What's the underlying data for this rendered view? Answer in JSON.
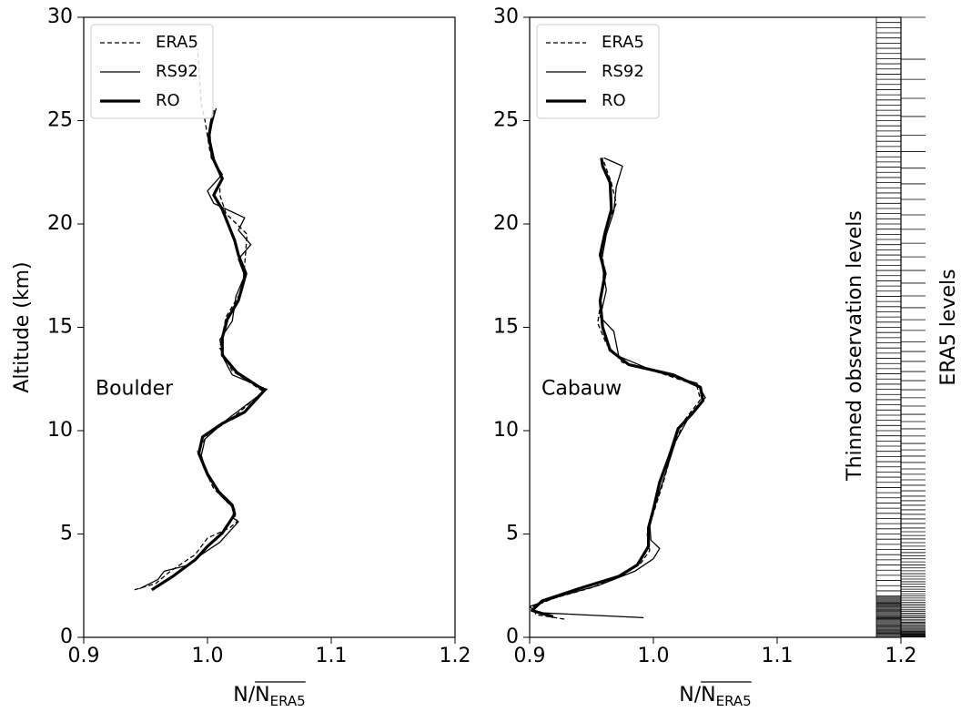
{
  "chart_data": [
    {
      "type": "line",
      "annotation": "Boulder",
      "ylabel": "Altitude (km)",
      "xlabel": {
        "prefix": "N/",
        "overlined": "N",
        "subscript": "ERA5"
      },
      "xlim": [
        0.9,
        1.2
      ],
      "xticks": [
        0.9,
        {
          "value": 1.0,
          "label": "1.0"
        },
        1.1,
        1.2
      ],
      "ylim": [
        0,
        30
      ],
      "yticks": [
        0,
        5,
        10,
        15,
        20,
        25,
        30
      ],
      "legend": "upper left",
      "series": [
        {
          "name": "ERA5",
          "color": "#000000",
          "dash": "dashed",
          "values": [
            0.941,
            0.958,
            0.97,
            0.99,
            1.0,
            1.018,
            1.024,
            1.02,
            1.005,
            0.997,
            0.992,
            1.0,
            1.02,
            1.045,
            1.02,
            1.01,
            1.015,
            1.028,
            1.03,
            1.032,
            1.015,
            1.01,
            1.01,
            1.002,
            0.998,
            0.995,
            0.992
          ],
          "altitude": [
            2.3,
            2.6,
            3.2,
            4.0,
            4.8,
            5.3,
            5.6,
            6.3,
            7.2,
            8.2,
            9.0,
            9.8,
            10.6,
            11.9,
            12.9,
            14.0,
            15.5,
            16.8,
            18.0,
            19.5,
            20.5,
            21.4,
            22.5,
            23.5,
            25.0,
            25.8,
            28.5
          ]
        },
        {
          "name": "RS92",
          "color": "#000000",
          "dash": "solid",
          "values": [
            0.945,
            0.96,
            0.965,
            0.985,
            0.995,
            1.01,
            1.025,
            1.02,
            1.022,
            1.01,
            1.0,
            0.995,
            0.998,
            1.015,
            1.048,
            1.02,
            1.013,
            1.01,
            1.02,
            1.023,
            1.03,
            1.025,
            1.035,
            1.025,
            1.03,
            1.005,
            1.0,
            1.012,
            1.003,
            1.002,
            1.007
          ],
          "altitude": [
            2.35,
            2.8,
            3.2,
            3.5,
            4.0,
            4.6,
            5.6,
            5.8,
            6.2,
            6.9,
            7.8,
            8.8,
            9.6,
            10.5,
            12.0,
            12.7,
            13.5,
            14.4,
            15.3,
            16.5,
            17.5,
            18.3,
            19.0,
            19.7,
            20.3,
            21.0,
            21.6,
            22.4,
            23.2,
            24.5,
            25.6
          ]
        },
        {
          "name": "RO",
          "color": "#000000",
          "dash": "thick",
          "values": [
            0.955,
            0.972,
            0.99,
            1.0,
            1.012,
            1.022,
            1.02,
            1.009,
            1.0,
            0.993,
            0.996,
            1.012,
            1.03,
            1.046,
            1.024,
            1.012,
            1.012,
            1.016,
            1.025,
            1.031,
            1.025,
            1.022,
            1.012,
            1.005,
            1.012,
            1.005,
            1.001,
            1.003,
            1.005
          ],
          "altitude": [
            2.3,
            2.95,
            3.75,
            4.4,
            5.05,
            5.95,
            6.4,
            7.05,
            7.9,
            8.9,
            9.7,
            10.35,
            10.9,
            11.95,
            12.8,
            13.65,
            14.5,
            15.4,
            16.3,
            17.6,
            18.5,
            19.2,
            20.7,
            21.4,
            22.2,
            23.1,
            24.2,
            24.9,
            25.5
          ]
        }
      ]
    },
    {
      "type": "line",
      "annotation": "Cabauw",
      "xlabel": {
        "prefix": "N/",
        "overlined": "N",
        "subscript": "ERA5"
      },
      "xlim": [
        0.9,
        1.2
      ],
      "xticks": [
        0.9,
        {
          "value": 1.0,
          "label": "1.0"
        },
        1.1,
        1.2
      ],
      "ylim": [
        0,
        30
      ],
      "yticks": [
        0,
        5,
        10,
        15,
        20,
        25,
        30
      ],
      "legend": "upper left",
      "series": [
        {
          "name": "ERA5",
          "color": "#000000",
          "dash": "dashed",
          "values": [
            0.928,
            0.905,
            0.903,
            0.92,
            0.95,
            0.975,
            0.99,
            0.997,
            0.995,
            1.0,
            1.008,
            1.015,
            1.025,
            1.038,
            1.035,
            1.0,
            0.975,
            0.962,
            0.955,
            0.958,
            0.96,
            0.958,
            0.963,
            0.97,
            0.966,
            0.96
          ],
          "altitude": [
            0.88,
            1.1,
            1.5,
            1.9,
            2.4,
            3.0,
            3.6,
            4.2,
            5.0,
            6.0,
            7.5,
            9.0,
            10.5,
            11.5,
            12.2,
            12.9,
            13.3,
            14.2,
            15.2,
            16.5,
            17.8,
            19.0,
            20.0,
            21.0,
            22.0,
            23.0
          ]
        },
        {
          "name": "RS92",
          "color": "#000000",
          "dash": "solid",
          "values": [
            0.992,
            0.905,
            0.9,
            0.925,
            0.955,
            0.985,
            1.0,
            1.005,
            0.998,
            0.997,
            1.002,
            1.01,
            1.018,
            1.03,
            1.042,
            1.035,
            1.0,
            0.972,
            0.968,
            0.957,
            0.962,
            0.958,
            0.962,
            0.968,
            0.97,
            0.975,
            0.96
          ],
          "altitude": [
            0.95,
            1.2,
            1.5,
            2.0,
            2.5,
            3.2,
            3.8,
            4.3,
            4.7,
            5.5,
            6.5,
            8.0,
            9.5,
            10.8,
            11.6,
            12.3,
            12.9,
            13.6,
            14.8,
            15.5,
            16.8,
            18.2,
            19.5,
            20.6,
            21.8,
            22.8,
            23.2
          ]
        },
        {
          "name": "RO",
          "color": "#000000",
          "dash": "thick",
          "values": [
            0.919,
            0.902,
            0.91,
            0.943,
            0.972,
            0.987,
            0.996,
            0.996,
            1.0,
            1.005,
            1.013,
            1.02,
            1.031,
            1.04,
            1.038,
            1.016,
            0.98,
            0.965,
            0.959,
            0.957,
            0.961,
            0.957,
            0.961,
            0.966,
            0.965,
            0.959,
            0.958
          ],
          "altitude": [
            1.0,
            1.3,
            1.76,
            2.42,
            2.95,
            3.5,
            4.4,
            5.3,
            6.2,
            7.5,
            8.8,
            10.1,
            10.8,
            11.45,
            12.1,
            12.7,
            13.2,
            13.9,
            15.0,
            16.3,
            17.6,
            18.5,
            19.6,
            20.7,
            22.0,
            22.8,
            23.2
          ]
        }
      ],
      "obs_levels_label": "Thinned observation levels",
      "obs_levels": [
        0.05,
        0.1,
        0.15,
        0.2,
        0.25,
        0.3,
        0.35,
        0.4,
        0.45,
        0.5,
        0.55,
        0.6,
        0.65,
        0.7,
        0.75,
        0.8,
        0.85,
        0.9,
        0.95,
        1,
        1.05,
        1.1,
        1.15,
        1.2,
        1.25,
        1.3,
        1.35,
        1.4,
        1.45,
        1.5,
        1.55,
        1.6,
        1.65,
        1.7,
        1.75,
        1.8,
        1.85,
        1.9,
        1.95,
        2,
        2.25,
        2.5,
        2.75,
        3,
        3.25,
        3.5,
        3.75,
        4,
        4.25,
        4.5,
        4.75,
        5,
        5.25,
        5.5,
        5.75,
        6,
        6.25,
        6.5,
        6.75,
        7,
        7.25,
        7.5,
        7.75,
        8,
        8.25,
        8.5,
        8.75,
        9,
        9.25,
        9.5,
        9.75,
        10,
        10.25,
        10.5,
        10.75,
        11,
        11.25,
        11.5,
        11.75,
        12,
        12.25,
        12.5,
        12.75,
        13,
        13.25,
        13.5,
        13.75,
        14,
        14.25,
        14.5,
        14.75,
        15,
        15.25,
        15.5,
        15.75,
        16,
        16.25,
        16.5,
        16.75,
        17,
        17.25,
        17.5,
        17.75,
        18,
        18.25,
        18.5,
        18.75,
        19,
        19.25,
        19.5,
        19.75,
        20,
        20.25,
        20.5,
        20.75,
        21,
        21.25,
        21.5,
        21.75,
        22,
        22.25,
        22.5,
        22.75,
        23,
        23.25,
        23.5,
        23.75,
        24,
        24.25,
        24.5,
        24.75,
        25,
        25.25,
        25.5,
        25.75,
        26,
        26.25,
        26.5,
        26.75,
        27,
        27.25,
        27.5,
        27.75,
        28,
        28.25,
        28.5,
        28.75,
        29,
        29.25,
        29.5,
        29.75,
        30
      ],
      "era5_levels_label": "ERA5 levels",
      "era5_levels": [
        0.01,
        0.03,
        0.05,
        0.08,
        0.11,
        0.14,
        0.17,
        0.21,
        0.25,
        0.29,
        0.34,
        0.39,
        0.44,
        0.49,
        0.55,
        0.61,
        0.67,
        0.73,
        0.8,
        0.87,
        0.94,
        1.01,
        1.09,
        1.17,
        1.25,
        1.33,
        1.42,
        1.51,
        1.6,
        1.7,
        1.8,
        1.9,
        2.0,
        2.11,
        2.22,
        2.33,
        2.45,
        2.57,
        2.69,
        2.82,
        2.95,
        3.08,
        3.22,
        3.36,
        3.5,
        3.65,
        3.8,
        3.95,
        4.1,
        4.25,
        4.41,
        4.58,
        4.76,
        4.93,
        5.11,
        5.29,
        5.51,
        5.73,
        5.95,
        6.17,
        6.39,
        6.61,
        6.83,
        7.09,
        7.36,
        7.62,
        7.89,
        8.15,
        8.46,
        8.77,
        9.07,
        9.38,
        9.74,
        10.09,
        10.44,
        10.79,
        11.19,
        11.59,
        11.98,
        12.42,
        12.86,
        13.35,
        13.83,
        14.3,
        14.85,
        15.37,
        15.95,
        16.52,
        17.14,
        17.75,
        18.41,
        19.07,
        19.74,
        20.44,
        21.19,
        21.94,
        22.7,
        23.5,
        24.3,
        25.2,
        26.08,
        27.0,
        27.97,
        30.0
      ]
    }
  ]
}
